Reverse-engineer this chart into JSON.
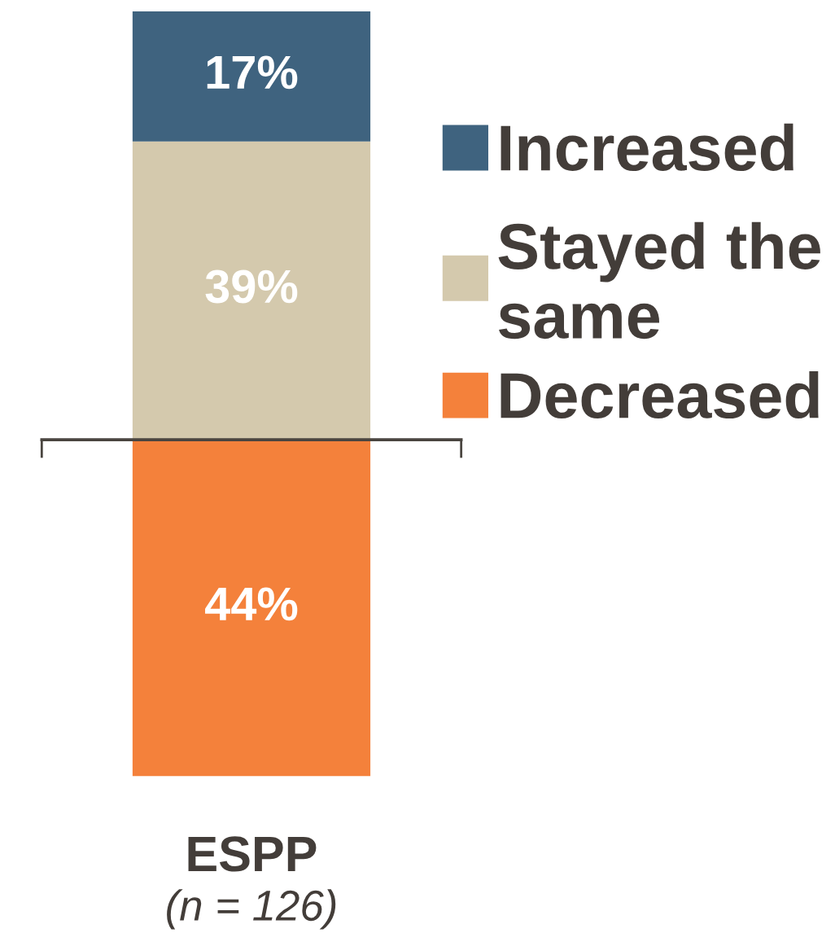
{
  "chart_data": {
    "type": "bar",
    "stacked": true,
    "categories": [
      "ESPP"
    ],
    "series": [
      {
        "name": "Decreased",
        "color": "#f4813b",
        "values": [
          44
        ],
        "value_labels": [
          "44%"
        ]
      },
      {
        "name": "Stayed the same",
        "color": "#d4c9ad",
        "values": [
          39
        ],
        "value_labels": [
          "39%"
        ]
      },
      {
        "name": "Increased",
        "color": "#3f637f",
        "values": [
          17
        ],
        "value_labels": [
          "17%"
        ]
      }
    ],
    "ref_lines": [
      {
        "axis": "y",
        "value": 44,
        "color": "#4a4540"
      }
    ],
    "annotations": [
      "(n = 126)"
    ],
    "legend": "right",
    "tick_labels": "x"
  }
}
